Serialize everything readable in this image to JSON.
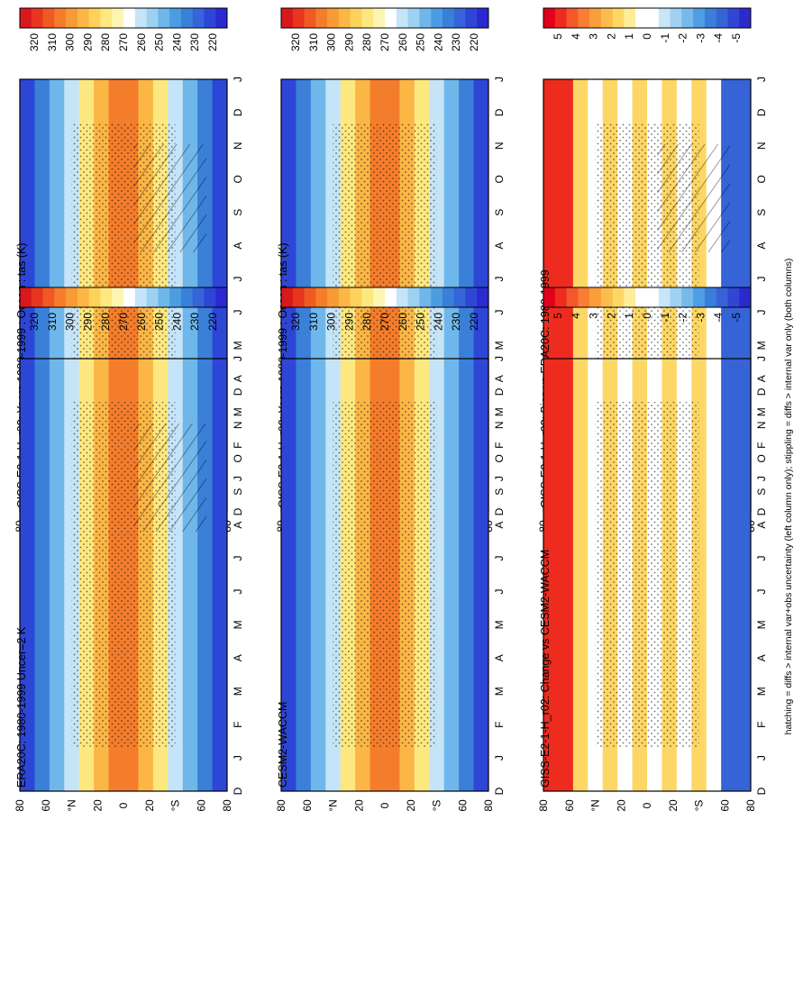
{
  "figure": {
    "footnote": "hatching = diffs > internal var+obs uncertainty (left column only); stippling = diffs > internal var only (both columns)"
  },
  "chart_data": [
    {
      "type": "heatmap",
      "title": "GISS-E2-1-H_r02: Years 1980-1999 : Ocean : tas (K)",
      "months": [
        "J",
        "F",
        "M",
        "A",
        "M",
        "J",
        "J",
        "A",
        "S",
        "O",
        "N",
        "D",
        "J"
      ],
      "x_first_label": "D",
      "lat_labels": [
        "80",
        "60",
        "°N",
        "20",
        "0",
        "20",
        "°S",
        "60",
        "80"
      ],
      "colorbar": {
        "labels": [
          "320",
          "310",
          "300",
          "290",
          "280",
          "270",
          "260",
          "250",
          "240",
          "230",
          "220"
        ],
        "unit": "K"
      },
      "hatching": true,
      "stippling": true
    },
    {
      "type": "heatmap",
      "title": "GISS-E2-1-H_r02: Years 1980-1999 : Ocean : tas (K)",
      "months": [
        "J",
        "F",
        "M",
        "A",
        "M",
        "J",
        "J",
        "A",
        "S",
        "O",
        "N",
        "D",
        "J"
      ],
      "x_first_label": "D",
      "lat_labels": [
        "80",
        "60",
        "°N",
        "20",
        "0",
        "20",
        "°S",
        "60",
        "80"
      ],
      "colorbar": {
        "labels": [
          "320",
          "310",
          "300",
          "290",
          "280",
          "270",
          "260",
          "250",
          "240",
          "230",
          "220"
        ],
        "unit": "K"
      },
      "hatching": false,
      "stippling": true
    },
    {
      "type": "heatmap",
      "title": "ERA20C: 1980-1999 Uncer=2 K",
      "months": [
        "J",
        "F",
        "M",
        "A",
        "M",
        "J",
        "J",
        "A",
        "S",
        "O",
        "N",
        "D",
        "J"
      ],
      "x_first_label": "D",
      "lat_labels": [
        "80",
        "60",
        "°N",
        "20",
        "0",
        "20",
        "°S",
        "60",
        "80"
      ],
      "colorbar": {
        "labels": [
          "320",
          "310",
          "300",
          "290",
          "280",
          "270",
          "260",
          "250",
          "240",
          "230",
          "220"
        ],
        "unit": "K"
      },
      "hatching": true,
      "stippling": true
    },
    {
      "type": "heatmap",
      "title": "CESM2-WACCM",
      "months": [
        "J",
        "F",
        "M",
        "A",
        "M",
        "J",
        "J",
        "A",
        "S",
        "O",
        "N",
        "D",
        "J"
      ],
      "x_first_label": "D",
      "lat_labels": [
        "80",
        "60",
        "°N",
        "20",
        "0",
        "20",
        "°S",
        "60",
        "80"
      ],
      "colorbar": {
        "labels": [
          "320",
          "310",
          "300",
          "290",
          "280",
          "270",
          "260",
          "250",
          "240",
          "230",
          "220"
        ],
        "unit": "K"
      },
      "hatching": false,
      "stippling": true
    },
    {
      "type": "heatmap",
      "title": "GISS-E2-1-H_r02: Bias vs ERA20C: 1980-1999",
      "months": [
        "J",
        "F",
        "M",
        "A",
        "M",
        "J",
        "J",
        "A",
        "S",
        "O",
        "N",
        "D",
        "J"
      ],
      "x_first_label": "D",
      "lat_labels": [
        "80",
        "60",
        "°N",
        "20",
        "0",
        "20",
        "°S",
        "60",
        "80"
      ],
      "colorbar": {
        "labels": [
          "5",
          "4",
          "3",
          "2",
          "1",
          "0",
          "-1",
          "-2",
          "-3",
          "-4",
          "-5"
        ],
        "unit": "K"
      },
      "hatching": true,
      "stippling": true
    },
    {
      "type": "heatmap",
      "title": "GISS-E2-1-H_r02: Change vs CESM2-WACCM",
      "months": [
        "J",
        "F",
        "M",
        "A",
        "M",
        "J",
        "J",
        "A",
        "S",
        "O",
        "N",
        "D",
        "J"
      ],
      "x_first_label": "D",
      "lat_labels": [
        "80",
        "60",
        "°N",
        "20",
        "0",
        "20",
        "°S",
        "60",
        "80"
      ],
      "colorbar": {
        "labels": [
          "5",
          "4",
          "3",
          "2",
          "1",
          "0",
          "-1",
          "-2",
          "-3",
          "-4",
          "-5"
        ],
        "unit": "K"
      },
      "hatching": false,
      "stippling": true
    }
  ]
}
